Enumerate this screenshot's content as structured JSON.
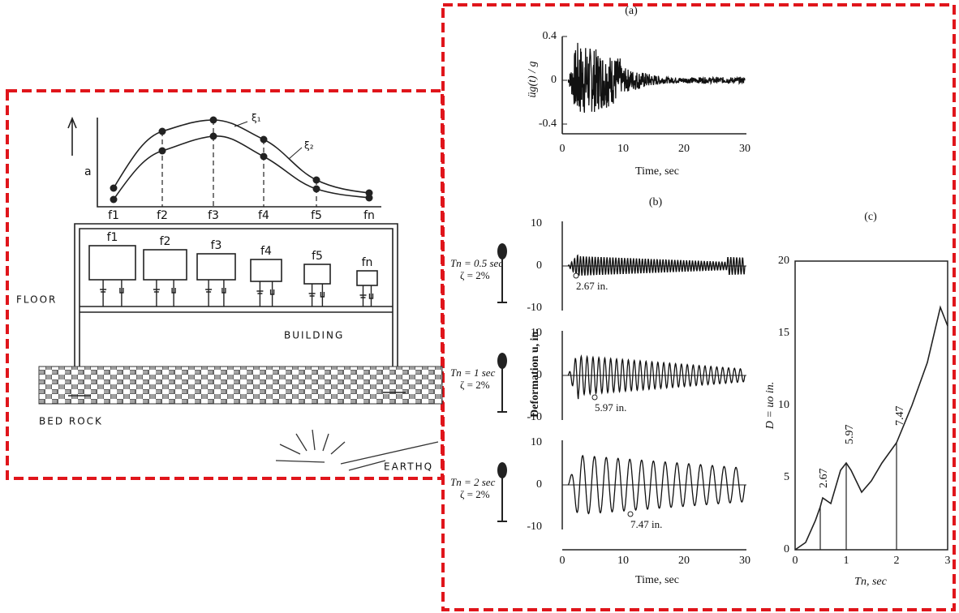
{
  "left": {
    "y_label": "a",
    "curves": [
      "ξ₁",
      "ξ₂"
    ],
    "x_labels": [
      "f1",
      "f2",
      "f3",
      "f4",
      "f5",
      "fn"
    ],
    "boxes": [
      "f1",
      "f2",
      "f3",
      "f4",
      "f5",
      "fn"
    ],
    "floor": "FLOOR",
    "building": "BUILDING",
    "bed_rock": "BED ROCK",
    "earthquake": "EARTHQ"
  },
  "panel_a": {
    "label": "(a)",
    "y_label": "üg(t) / g",
    "yticks": [
      "0.4",
      "0",
      "-0.4"
    ],
    "xticks": [
      "0",
      "10",
      "20",
      "30"
    ],
    "x_label": "Time, sec"
  },
  "panel_b": {
    "label": "(b)",
    "y_label": "Deformation u, in.",
    "rows": [
      {
        "period": "Tn = 0.5 sec",
        "damping": "ζ = 2%",
        "peak": "2.67 in.",
        "yticks": [
          "10",
          "0",
          "-10"
        ]
      },
      {
        "period": "Tn = 1 sec",
        "damping": "ζ = 2%",
        "peak": "5.97 in.",
        "yticks": [
          "10",
          "0",
          "-10"
        ]
      },
      {
        "period": "Tn = 2 sec",
        "damping": "ζ = 2%",
        "peak": "7.47 in.",
        "yticks": [
          "10",
          "0",
          "-10"
        ]
      }
    ],
    "xticks": [
      "0",
      "10",
      "20",
      "30"
    ],
    "x_label": "Time, sec"
  },
  "panel_c": {
    "label": "(c)",
    "y_label": "D = uo in.",
    "yticks": [
      "20",
      "15",
      "10",
      "5",
      "0"
    ],
    "xticks": [
      "0",
      "1",
      "2",
      "3"
    ],
    "x_label": "Tn, sec",
    "peaks": [
      "2.67",
      "5.97",
      "7.47"
    ]
  }
}
